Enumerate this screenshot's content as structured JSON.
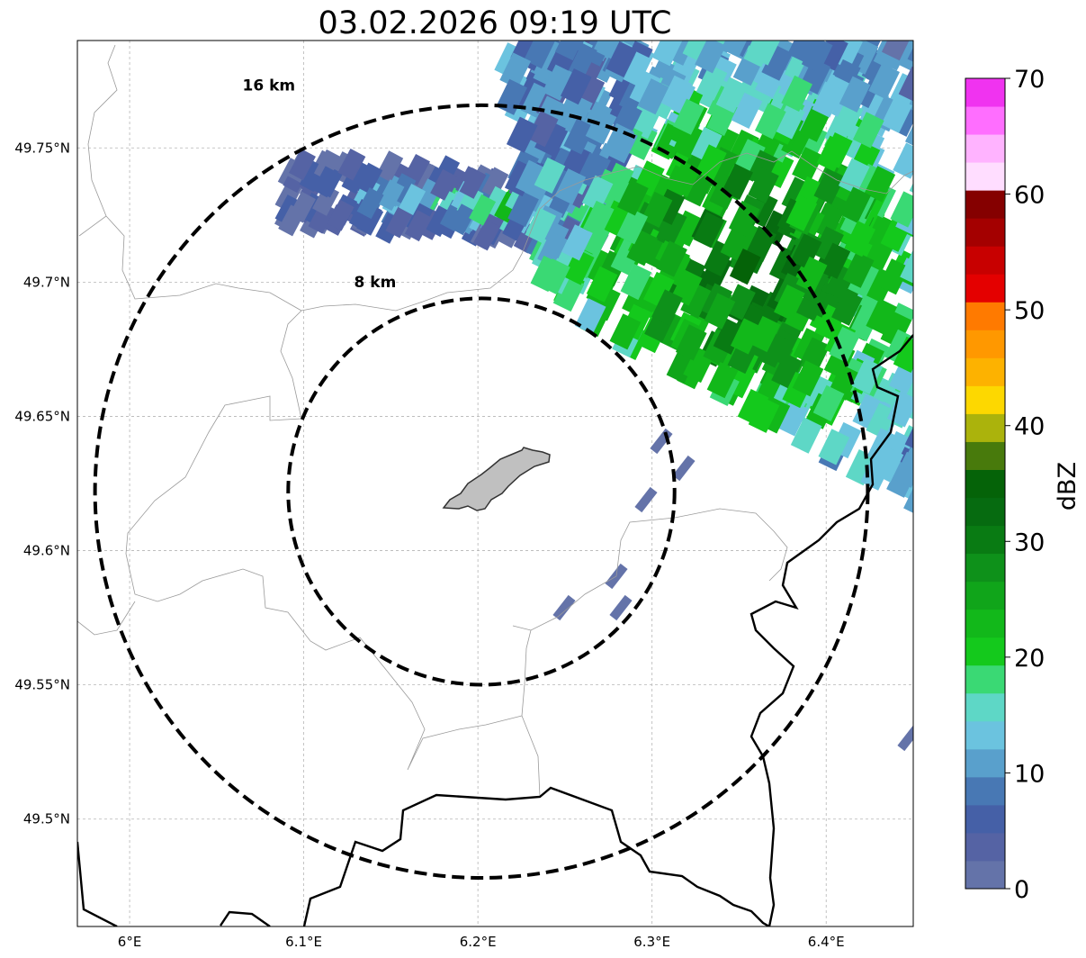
{
  "title": "03.02.2026 09:19 UTC",
  "map": {
    "lon_range": [
      5.97,
      6.45
    ],
    "lat_range": [
      49.46,
      49.79
    ],
    "grid": true,
    "center": {
      "lon": 6.202,
      "lat": 49.622
    },
    "lon_ticks": [
      {
        "value": 6.0,
        "label": "6°E"
      },
      {
        "value": 6.1,
        "label": "6.1°E"
      },
      {
        "value": 6.2,
        "label": "6.2°E"
      },
      {
        "value": 6.3,
        "label": "6.3°E"
      },
      {
        "value": 6.4,
        "label": "6.4°E"
      }
    ],
    "lat_ticks": [
      {
        "value": 49.75,
        "label": "49.75°N"
      },
      {
        "value": 49.7,
        "label": "49.7°N"
      },
      {
        "value": 49.65,
        "label": "49.65°N"
      },
      {
        "value": 49.6,
        "label": "49.6°N"
      },
      {
        "value": 49.55,
        "label": "49.55°N"
      },
      {
        "value": 49.5,
        "label": "49.5°N"
      }
    ],
    "range_rings": [
      {
        "radius_km": 8,
        "label": "8 km"
      },
      {
        "radius_km": 16,
        "label": "16 km"
      }
    ],
    "city_fill": "#c0c0c0"
  },
  "colorbar": {
    "label": "dBZ",
    "range": [
      0,
      70
    ],
    "ticks": [
      "0",
      "10",
      "20",
      "30",
      "40",
      "50",
      "60",
      "70"
    ],
    "colors": [
      "#6473a9",
      "#5563a4",
      "#4560a7",
      "#4878b4",
      "#59a0cc",
      "#6bc3df",
      "#5ed7c6",
      "#3ad974",
      "#14c91c",
      "#12b81a",
      "#10a51a",
      "#0e911a",
      "#097b13",
      "#066b10",
      "#056308",
      "#487a0c",
      "#abb30c",
      "#fdd800",
      "#fdb200",
      "#ff9800",
      "#ff7a00",
      "#e40000",
      "#c80000",
      "#a40000",
      "#850000",
      "#ffddff",
      "#ffb3ff",
      "#ff6eff",
      "#f033f0"
    ]
  },
  "chart_data": {
    "type": "heatmap",
    "title": "03.02.2026 09:19 UTC",
    "xlabel": "",
    "ylabel": "",
    "colorbar_label": "dBZ",
    "value_range": [
      0,
      70
    ],
    "echo_regions": [
      {
        "area": "north-east band",
        "dbz_range": [
          0,
          30
        ]
      },
      {
        "area": "east core",
        "dbz_max": 35
      },
      {
        "area": "scattered south-east cells",
        "dbz_range": [
          0,
          5
        ]
      }
    ]
  }
}
